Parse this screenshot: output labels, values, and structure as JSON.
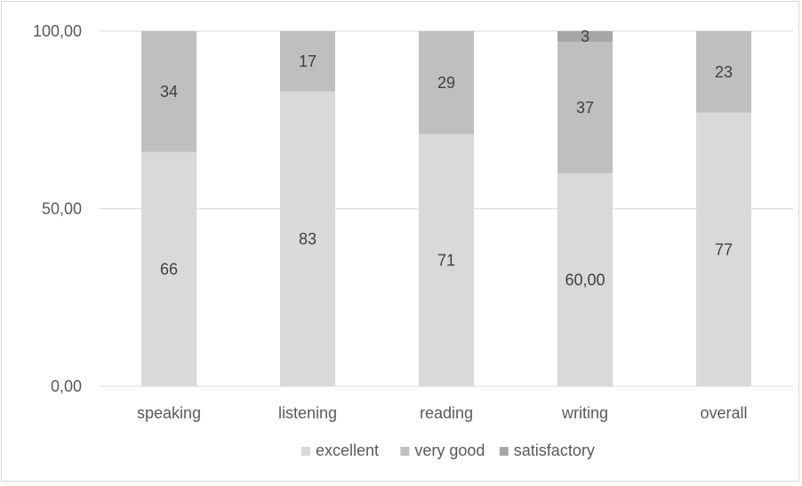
{
  "chart_data": {
    "type": "bar",
    "stacked": true,
    "categories": [
      "speaking",
      "listening",
      "reading",
      "writing",
      "overall"
    ],
    "series": [
      {
        "name": "excellent",
        "values": [
          66,
          83,
          71,
          60,
          77
        ],
        "color": "#d9d9d9",
        "labels": [
          "66",
          "83",
          "71",
          "60,00",
          "77"
        ]
      },
      {
        "name": "very good",
        "values": [
          34,
          17,
          29,
          37,
          23
        ],
        "color": "#bfbfbf",
        "labels": [
          "34",
          "17",
          "29",
          "37",
          "23"
        ]
      },
      {
        "name": "satisfactory",
        "values": [
          0,
          0,
          0,
          3,
          0
        ],
        "color": "#a6a6a6",
        "labels": [
          "",
          "",
          "",
          "3",
          ""
        ]
      }
    ],
    "ylim": [
      0,
      100
    ],
    "yticks": [
      0,
      50,
      100
    ],
    "ytick_labels": [
      "0,00",
      "50,00",
      "100,00"
    ],
    "grid": true,
    "legend": "bottom",
    "title": "",
    "xlabel": "",
    "ylabel": ""
  }
}
